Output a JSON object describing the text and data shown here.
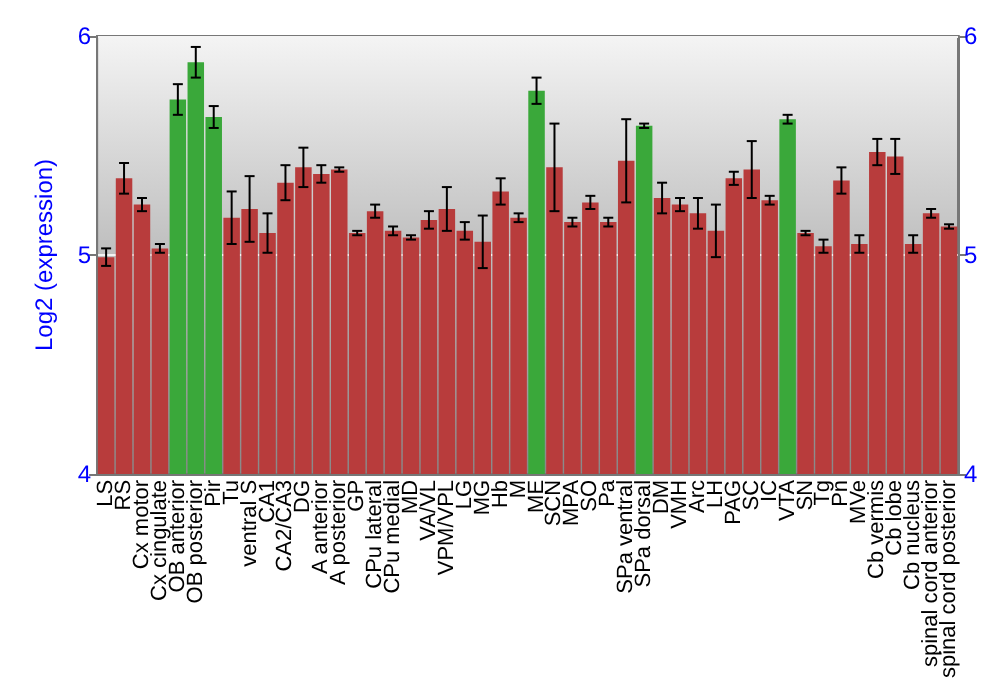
{
  "chart_data": {
    "type": "bar",
    "ylabel": "Log2 (expression)",
    "categories": [
      "LS",
      "RS",
      "Cx motor",
      "Cx cingulate",
      "OB anterior",
      "OB posterior",
      "Pir",
      "Tu",
      "ventral S",
      "CA1",
      "CA2/CA3",
      "DG",
      "A anterior",
      "A posterior",
      "GP",
      "CPu lateral",
      "CPu medial",
      "MD",
      "VA/VL",
      "VPM/VPL",
      "LG",
      "MG",
      "Hb",
      "M",
      "ME",
      "SCN",
      "MPA",
      "SO",
      "Pa",
      "SPa ventral",
      "SPa dorsal",
      "DM",
      "VMH",
      "Arc",
      "LH",
      "PAG",
      "SC",
      "IC",
      "VTA",
      "SN",
      "Tg",
      "Pn",
      "MVe",
      "Cb vermis",
      "Cb lobe",
      "Cb nucleus",
      "spinal cord anterior",
      "spinal cord posterior"
    ],
    "values": [
      4.99,
      5.35,
      5.23,
      5.03,
      5.71,
      5.88,
      5.63,
      5.17,
      5.21,
      5.1,
      5.33,
      5.4,
      5.37,
      5.39,
      5.1,
      5.2,
      5.11,
      5.08,
      5.16,
      5.21,
      5.11,
      5.06,
      5.29,
      5.17,
      5.75,
      5.4,
      5.15,
      5.24,
      5.15,
      5.43,
      5.59,
      5.26,
      5.23,
      5.19,
      5.11,
      5.35,
      5.39,
      5.25,
      5.62,
      5.1,
      5.04,
      5.34,
      5.05,
      5.47,
      5.45,
      5.05,
      5.19,
      5.13
    ],
    "errors": [
      0.04,
      0.07,
      0.03,
      0.02,
      0.07,
      0.07,
      0.05,
      0.12,
      0.15,
      0.09,
      0.08,
      0.09,
      0.04,
      0.01,
      0.01,
      0.03,
      0.02,
      0.01,
      0.04,
      0.1,
      0.04,
      0.12,
      0.06,
      0.02,
      0.06,
      0.2,
      0.02,
      0.03,
      0.02,
      0.19,
      0.01,
      0.07,
      0.03,
      0.07,
      0.12,
      0.03,
      0.13,
      0.02,
      0.02,
      0.01,
      0.03,
      0.06,
      0.04,
      0.06,
      0.08,
      0.04,
      0.02,
      0.01
    ],
    "colors": [
      "#b83c3c",
      "#b83c3c",
      "#b83c3c",
      "#b83c3c",
      "#3aa83a",
      "#3aa83a",
      "#3aa83a",
      "#b83c3c",
      "#b83c3c",
      "#b83c3c",
      "#b83c3c",
      "#b83c3c",
      "#b83c3c",
      "#b83c3c",
      "#b83c3c",
      "#b83c3c",
      "#b83c3c",
      "#b83c3c",
      "#b83c3c",
      "#b83c3c",
      "#b83c3c",
      "#b83c3c",
      "#b83c3c",
      "#b83c3c",
      "#3aa83a",
      "#b83c3c",
      "#b83c3c",
      "#b83c3c",
      "#b83c3c",
      "#b83c3c",
      "#3aa83a",
      "#b83c3c",
      "#b83c3c",
      "#b83c3c",
      "#b83c3c",
      "#b83c3c",
      "#b83c3c",
      "#b83c3c",
      "#3aa83a",
      "#b83c3c",
      "#b83c3c",
      "#b83c3c",
      "#b83c3c",
      "#b83c3c",
      "#b83c3c",
      "#b83c3c",
      "#b83c3c",
      "#b83c3c"
    ],
    "ylim": [
      4,
      6
    ],
    "yticks": [
      4,
      5,
      6
    ],
    "y2lim": [
      4,
      6
    ],
    "y2ticks": [
      4,
      5,
      6
    ],
    "grid": "y"
  }
}
